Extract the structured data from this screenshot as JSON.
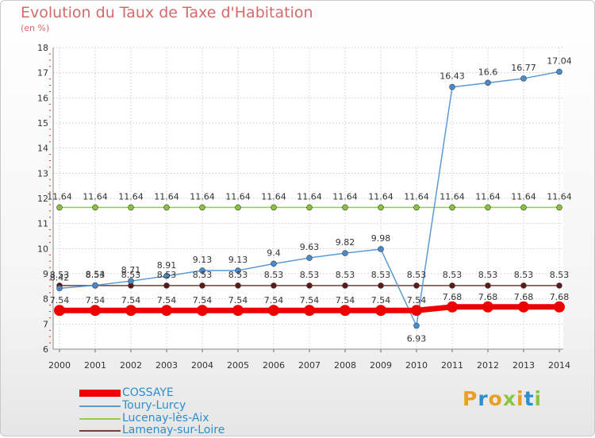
{
  "chart_data": {
    "type": "line",
    "title": "Evolution du Taux de Taxe d'Habitation",
    "subtitle": "(en %)",
    "x": [
      "2000",
      "2001",
      "2002",
      "2003",
      "2004",
      "2005",
      "2006",
      "2007",
      "2008",
      "2009",
      "2010",
      "2011",
      "2012",
      "2013",
      "2014"
    ],
    "ylim": [
      6,
      18
    ],
    "yticks": [
      "6",
      "7",
      "8",
      "9",
      "10",
      "11",
      "12",
      "13",
      "14",
      "15",
      "16",
      "17",
      "18"
    ],
    "grid": true,
    "legend_position": "bottom-left",
    "series": [
      {
        "name": "COSSAYE",
        "color": "#ee0000",
        "values": [
          7.54,
          7.54,
          7.54,
          7.54,
          7.54,
          7.54,
          7.54,
          7.54,
          7.54,
          7.54,
          7.54,
          7.68,
          7.68,
          7.68,
          7.68
        ],
        "labels": [
          "7.54",
          "7.54",
          "7.54",
          "7.54",
          "7.54",
          "7.54",
          "7.54",
          "7.54",
          "7.54",
          "7.54",
          "7.54",
          "7.68",
          "7.68",
          "7.68",
          "7.68"
        ]
      },
      {
        "name": "Toury-Lurcy",
        "color": "#5b9bd5",
        "values": [
          8.42,
          8.54,
          8.71,
          8.91,
          9.13,
          9.13,
          9.4,
          9.63,
          9.82,
          9.98,
          6.93,
          16.43,
          16.6,
          16.77,
          17.04
        ],
        "labels": [
          "8.42",
          "8.54",
          "8.71",
          "8.91",
          "9.13",
          "9.13",
          "9.4",
          "9.63",
          "9.82",
          "9.98",
          "6.93",
          "16.43",
          "16.6",
          "16.77",
          "17.04"
        ]
      },
      {
        "name": "Lucenay-lès-Aix",
        "color": "#99cc44",
        "values": [
          11.64,
          11.64,
          11.64,
          11.64,
          11.64,
          11.64,
          11.64,
          11.64,
          11.64,
          11.64,
          11.64,
          11.64,
          11.64,
          11.64,
          11.64
        ],
        "labels": [
          "11.64",
          "11.64",
          "11.64",
          "11.64",
          "11.64",
          "11.64",
          "11.64",
          "11.64",
          "11.64",
          "11.64",
          "11.64",
          "11.64",
          "11.64",
          "11.64",
          "11.64"
        ]
      },
      {
        "name": "Lamenay-sur-Loire",
        "color": "#7a3a3a",
        "values": [
          8.53,
          8.53,
          8.53,
          8.53,
          8.53,
          8.53,
          8.53,
          8.53,
          8.53,
          8.53,
          8.53,
          8.53,
          8.53,
          8.53,
          8.53
        ],
        "labels": [
          "8.53",
          "8.53",
          "8.53",
          "8.53",
          "8.53",
          "8.53",
          "8.53",
          "8.53",
          "8.53",
          "8.53",
          "8.53",
          "8.53",
          "8.53",
          "8.53",
          "8.53"
        ]
      }
    ]
  },
  "brand": {
    "text": "Proxiti",
    "colors": [
      "#e8a020",
      "#2a8fd0",
      "#e8a020",
      "#8cc63f",
      "#e8a020",
      "#2a8fd0",
      "#8cc63f"
    ]
  }
}
